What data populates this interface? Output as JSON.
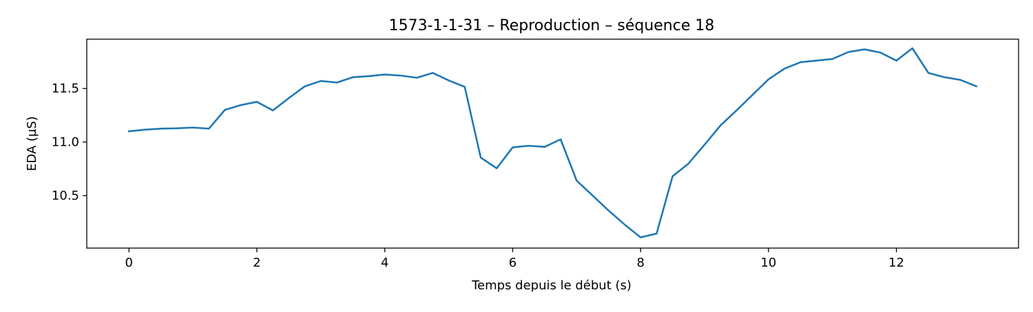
{
  "chart_data": {
    "type": "line",
    "title": "1573-1-1-31 – Reproduction – séquence 18",
    "xlabel": "Temps depuis le début (s)",
    "ylabel": "EDA (µS)",
    "xlim": [
      -0.66,
      13.91
    ],
    "ylim": [
      10.01,
      11.96
    ],
    "xticks": [
      0,
      2,
      4,
      6,
      8,
      10,
      12
    ],
    "xtick_labels": [
      "0",
      "2",
      "4",
      "6",
      "8",
      "10",
      "12"
    ],
    "yticks": [
      10.5,
      11.0,
      11.5
    ],
    "ytick_labels": [
      "10.5",
      "11.0",
      "11.5"
    ],
    "grid": false,
    "series": [
      {
        "color": "#1f77b4",
        "x": [
          0,
          0.25,
          0.5,
          0.75,
          1.0,
          1.25,
          1.5,
          1.75,
          2.0,
          2.25,
          2.5,
          2.75,
          3.0,
          3.25,
          3.5,
          3.75,
          4.0,
          4.25,
          4.5,
          4.75,
          5.0,
          5.25,
          5.5,
          5.75,
          6.0,
          6.25,
          6.5,
          6.75,
          7.0,
          7.25,
          7.5,
          7.75,
          8.0,
          8.25,
          8.5,
          8.75,
          9.0,
          9.25,
          9.5,
          9.75,
          10.0,
          10.25,
          10.5,
          10.75,
          11.0,
          11.25,
          11.5,
          11.75,
          12.0,
          12.25,
          12.5,
          12.75,
          13.0,
          13.25
        ],
        "y": [
          11.1,
          11.115,
          11.125,
          11.128,
          11.135,
          11.125,
          11.3,
          11.345,
          11.375,
          11.295,
          11.41,
          11.52,
          11.57,
          11.555,
          11.605,
          11.615,
          11.63,
          11.62,
          11.6,
          11.645,
          11.575,
          11.515,
          10.855,
          10.755,
          10.95,
          10.965,
          10.955,
          11.025,
          10.64,
          10.5,
          10.36,
          10.23,
          10.11,
          10.145,
          10.68,
          10.8,
          10.975,
          11.155,
          11.295,
          11.44,
          11.585,
          11.685,
          11.745,
          11.76,
          11.775,
          11.84,
          11.865,
          11.835,
          11.76,
          11.875,
          11.645,
          11.605,
          11.58,
          11.52
        ]
      }
    ]
  }
}
